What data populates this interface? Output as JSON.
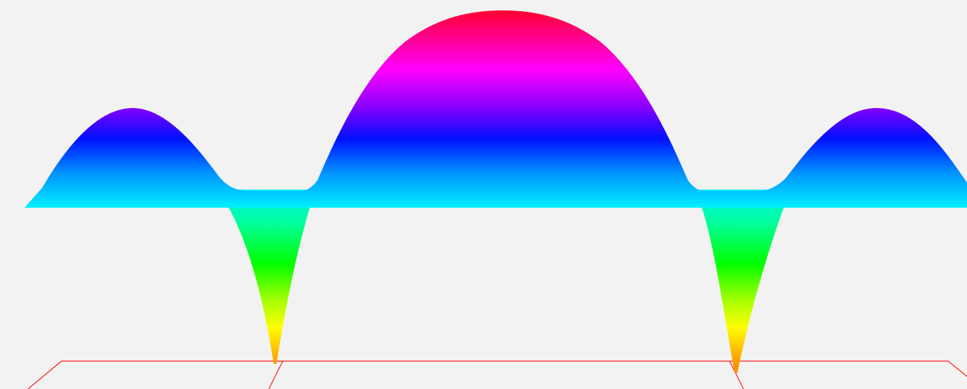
{
  "scene": {
    "background": "#f2f2f2",
    "floor_line_color": "#ff1a1a",
    "colormap": {
      "top_upper": "#ff0030",
      "top_mid_magenta": "#ff00ff",
      "top_violet": "#8000ff",
      "top_blue": "#0010ff",
      "top_light_blue": "#0090ff",
      "top_cyan": "#00f0ff",
      "bottom_cyan": "#00f0f0",
      "bottom_teal": "#00ffa0",
      "bottom_green": "#00ff00",
      "bottom_yellow_green": "#a0ff00",
      "bottom_yellow": "#ffff00",
      "bottom_orange": "#ff9000"
    }
  }
}
